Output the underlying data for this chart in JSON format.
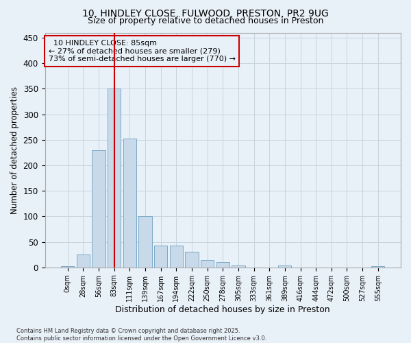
{
  "title_line1": "10, HINDLEY CLOSE, FULWOOD, PRESTON, PR2 9UG",
  "title_line2": "Size of property relative to detached houses in Preston",
  "xlabel": "Distribution of detached houses by size in Preston",
  "ylabel": "Number of detached properties",
  "bar_categories": [
    "0sqm",
    "28sqm",
    "56sqm",
    "83sqm",
    "111sqm",
    "139sqm",
    "167sqm",
    "194sqm",
    "222sqm",
    "250sqm",
    "278sqm",
    "305sqm",
    "333sqm",
    "361sqm",
    "389sqm",
    "416sqm",
    "444sqm",
    "472sqm",
    "500sqm",
    "527sqm",
    "555sqm"
  ],
  "bar_values": [
    2,
    25,
    230,
    350,
    252,
    100,
    42,
    42,
    30,
    15,
    10,
    3,
    0,
    0,
    3,
    0,
    0,
    0,
    0,
    0,
    2
  ],
  "bar_color": "#c8d9ea",
  "bar_edgecolor": "#7baac8",
  "vline_x_index": 3,
  "vline_color": "#cc0000",
  "annotation_text": "  10 HINDLEY CLOSE: 85sqm\n← 27% of detached houses are smaller (279)\n73% of semi-detached houses are larger (770) →",
  "annotation_box_edgecolor": "#cc0000",
  "annotation_fontsize": 8.0,
  "ylim": [
    0,
    460
  ],
  "yticks": [
    0,
    50,
    100,
    150,
    200,
    250,
    300,
    350,
    400,
    450
  ],
  "grid_color": "#c8d4de",
  "background_color": "#e8f0f8",
  "title1_fontsize": 10.0,
  "title2_fontsize": 9.0,
  "xlabel_fontsize": 9.0,
  "ylabel_fontsize": 8.5,
  "footnote": "Contains HM Land Registry data © Crown copyright and database right 2025.\nContains public sector information licensed under the Open Government Licence v3.0."
}
